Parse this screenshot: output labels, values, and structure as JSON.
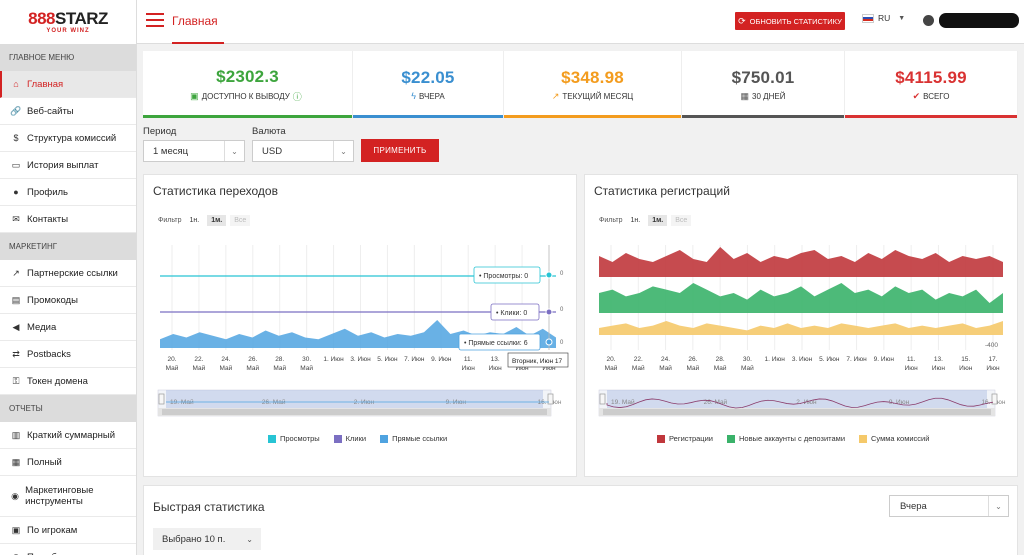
{
  "brand": {
    "logo_main_red": "888",
    "logo_main_dark": "STARZ",
    "logo_sub": "YOUR WINZ"
  },
  "topbar": {
    "title": "Главная",
    "refresh_label": "ОБНОВИТЬ СТАТИСТИКУ",
    "language": "RU"
  },
  "sidebar": {
    "sections": [
      {
        "title": "ГЛАВНОЕ МЕНЮ",
        "items": [
          {
            "label": "Главная",
            "icon": "home-icon",
            "active": true
          },
          {
            "label": "Веб-сайты",
            "icon": "link-icon"
          },
          {
            "label": "Структура комиссий",
            "icon": "dollar-icon"
          },
          {
            "label": "История выплат",
            "icon": "money-icon"
          },
          {
            "label": "Профиль",
            "icon": "user-icon"
          },
          {
            "label": "Контакты",
            "icon": "envelope-icon"
          }
        ]
      },
      {
        "title": "МАРКЕТИНГ",
        "items": [
          {
            "label": "Партнерские ссылки",
            "icon": "external-link-icon"
          },
          {
            "label": "Промокоды",
            "icon": "ticket-icon"
          },
          {
            "label": "Медиа",
            "icon": "megaphone-icon"
          },
          {
            "label": "Postbacks",
            "icon": "postback-icon"
          },
          {
            "label": "Токен домена",
            "icon": "key-icon"
          }
        ]
      },
      {
        "title": "ОТЧЕТЫ",
        "items": [
          {
            "label": "Краткий суммарный",
            "icon": "bar-chart-icon"
          },
          {
            "label": "Полный",
            "icon": "full-chart-icon"
          },
          {
            "label": "Маркетинговые инструменты",
            "icon": "palette-icon"
          },
          {
            "label": "По игрокам",
            "icon": "id-card-icon"
          },
          {
            "label": "По суб-партнерам",
            "icon": "users-icon"
          }
        ]
      }
    ]
  },
  "stats": [
    {
      "value": "$2302.3",
      "label": "ДОСТУПНО К ВЫВОДУ",
      "color": "#3da53d",
      "icon": "wallet-icon"
    },
    {
      "value": "$22.05",
      "label": "ВЧЕРА",
      "color": "#3a8fd0",
      "icon": "bolt-icon"
    },
    {
      "value": "$348.98",
      "label": "ТЕКУЩИЙ МЕСЯЦ",
      "color": "#f39c1e",
      "icon": "trend-icon"
    },
    {
      "value": "$750.01",
      "label": "30 ДНЕЙ",
      "color": "#555555",
      "icon": "calendar-icon"
    },
    {
      "value": "$4115.99",
      "label": "ВСЕГО",
      "color": "#d93232",
      "icon": "check-icon"
    }
  ],
  "filters": {
    "period_label": "Период",
    "period_value": "1 месяц",
    "currency_label": "Валюта",
    "currency_value": "USD",
    "apply_label": "ПРИМЕНИТЬ"
  },
  "charts": {
    "filter_label": "Фильтр",
    "filter_buttons": [
      "1н.",
      "1м.",
      "Все"
    ],
    "x_ticks": [
      [
        "20.",
        "Май"
      ],
      [
        "22.",
        "Май"
      ],
      [
        "24.",
        "Май"
      ],
      [
        "26.",
        "Май"
      ],
      [
        "28.",
        "Май"
      ],
      [
        "30.",
        "Май"
      ],
      [
        "1. Июн",
        ""
      ],
      [
        "3. Июн",
        ""
      ],
      [
        "5. Июн",
        ""
      ],
      [
        "7. Июн",
        ""
      ],
      [
        "9. Июн",
        ""
      ],
      [
        "11.",
        "Июн"
      ],
      [
        "13.",
        "Июн"
      ],
      [
        "15.",
        "Июн"
      ],
      [
        "17.",
        "Июн"
      ]
    ],
    "nav_ticks_left": [
      "19. Май",
      "26. Май",
      "2. Июн",
      "9. Июн",
      "16. Июн"
    ],
    "nav_ticks_right": [
      "19. Май",
      "26. Май",
      "2. Июн",
      "9. Июн",
      "16. Июн"
    ]
  },
  "chart_data": [
    {
      "type": "line",
      "title": "Статистика переходов",
      "x": [
        "18.05",
        "19.05",
        "20.05",
        "21.05",
        "22.05",
        "23.05",
        "24.05",
        "25.05",
        "26.05",
        "27.05",
        "28.05",
        "29.05",
        "30.05",
        "31.05",
        "01.06",
        "02.06",
        "03.06",
        "04.06",
        "05.06",
        "06.06",
        "07.06",
        "08.06",
        "09.06",
        "10.06",
        "11.06",
        "12.06",
        "13.06",
        "14.06",
        "15.06",
        "16.06",
        "17.06"
      ],
      "series": [
        {
          "name": "Просмотры",
          "color": "#27c4d4",
          "values": [
            0,
            0,
            0,
            0,
            0,
            0,
            0,
            0,
            0,
            0,
            0,
            0,
            0,
            0,
            0,
            0,
            0,
            0,
            0,
            0,
            0,
            0,
            0,
            0,
            0,
            0,
            0,
            0,
            0,
            0,
            0
          ]
        },
        {
          "name": "Клики",
          "color": "#7b6fc2",
          "values": [
            0,
            0,
            0,
            0,
            0,
            0,
            0,
            0,
            0,
            0,
            0,
            0,
            0,
            0,
            0,
            0,
            0,
            0,
            0,
            0,
            0,
            0,
            0,
            0,
            0,
            0,
            0,
            0,
            0,
            0,
            0
          ]
        },
        {
          "name": "Прямые ссылки",
          "color": "#4fa3e0",
          "values": [
            5,
            8,
            6,
            9,
            7,
            5,
            8,
            6,
            10,
            7,
            9,
            6,
            5,
            8,
            11,
            7,
            9,
            6,
            8,
            7,
            9,
            16,
            8,
            10,
            7,
            9,
            8,
            12,
            7,
            11,
            6
          ]
        }
      ],
      "tooltips": [
        {
          "series": "Просмотры",
          "value": 0
        },
        {
          "series": "Клики",
          "value": 0
        },
        {
          "series": "Прямые ссылки",
          "value": 6
        }
      ],
      "hover_date": "Вторник, Июн 17",
      "axis_right_labels": [
        "0",
        "0",
        "0"
      ]
    },
    {
      "type": "area",
      "title": "Статистика регистраций",
      "x": [
        "18.05",
        "19.05",
        "20.05",
        "21.05",
        "22.05",
        "23.05",
        "24.05",
        "25.05",
        "26.05",
        "27.05",
        "28.05",
        "29.05",
        "30.05",
        "31.05",
        "01.06",
        "02.06",
        "03.06",
        "04.06",
        "05.06",
        "06.06",
        "07.06",
        "08.06",
        "09.06",
        "10.06",
        "11.06",
        "12.06",
        "13.06",
        "14.06",
        "15.06",
        "16.06",
        "17.06"
      ],
      "series": [
        {
          "name": "Регистрации",
          "color": "#c0373c",
          "values": [
            7,
            5,
            8,
            6,
            5,
            7,
            9,
            6,
            5,
            10,
            6,
            8,
            5,
            7,
            6,
            8,
            9,
            6,
            7,
            5,
            8,
            6,
            9,
            7,
            6,
            8,
            5,
            7,
            6,
            7,
            5
          ]
        },
        {
          "name": "Новые аккаунты с депозитами",
          "color": "#3ab26a",
          "values": [
            6,
            7,
            5,
            6,
            8,
            7,
            6,
            9,
            7,
            5,
            6,
            4,
            7,
            5,
            6,
            8,
            5,
            7,
            9,
            6,
            7,
            5,
            8,
            6,
            7,
            4,
            6,
            5,
            7,
            3,
            6
          ]
        },
        {
          "name": "Сумма комиссий",
          "color": "#f5c96a",
          "values": [
            3,
            4,
            5,
            3,
            4,
            6,
            4,
            3,
            5,
            4,
            3,
            2,
            4,
            3,
            5,
            3,
            4,
            3,
            5,
            4,
            3,
            4,
            5,
            3,
            4,
            3,
            4,
            5,
            3,
            4,
            6
          ]
        }
      ],
      "axis_right_labels": [
        "-400"
      ]
    }
  ],
  "quick": {
    "title": "Быстрая статистика",
    "period_value": "Вчера",
    "selected_label": "Выбрано 10 п."
  }
}
